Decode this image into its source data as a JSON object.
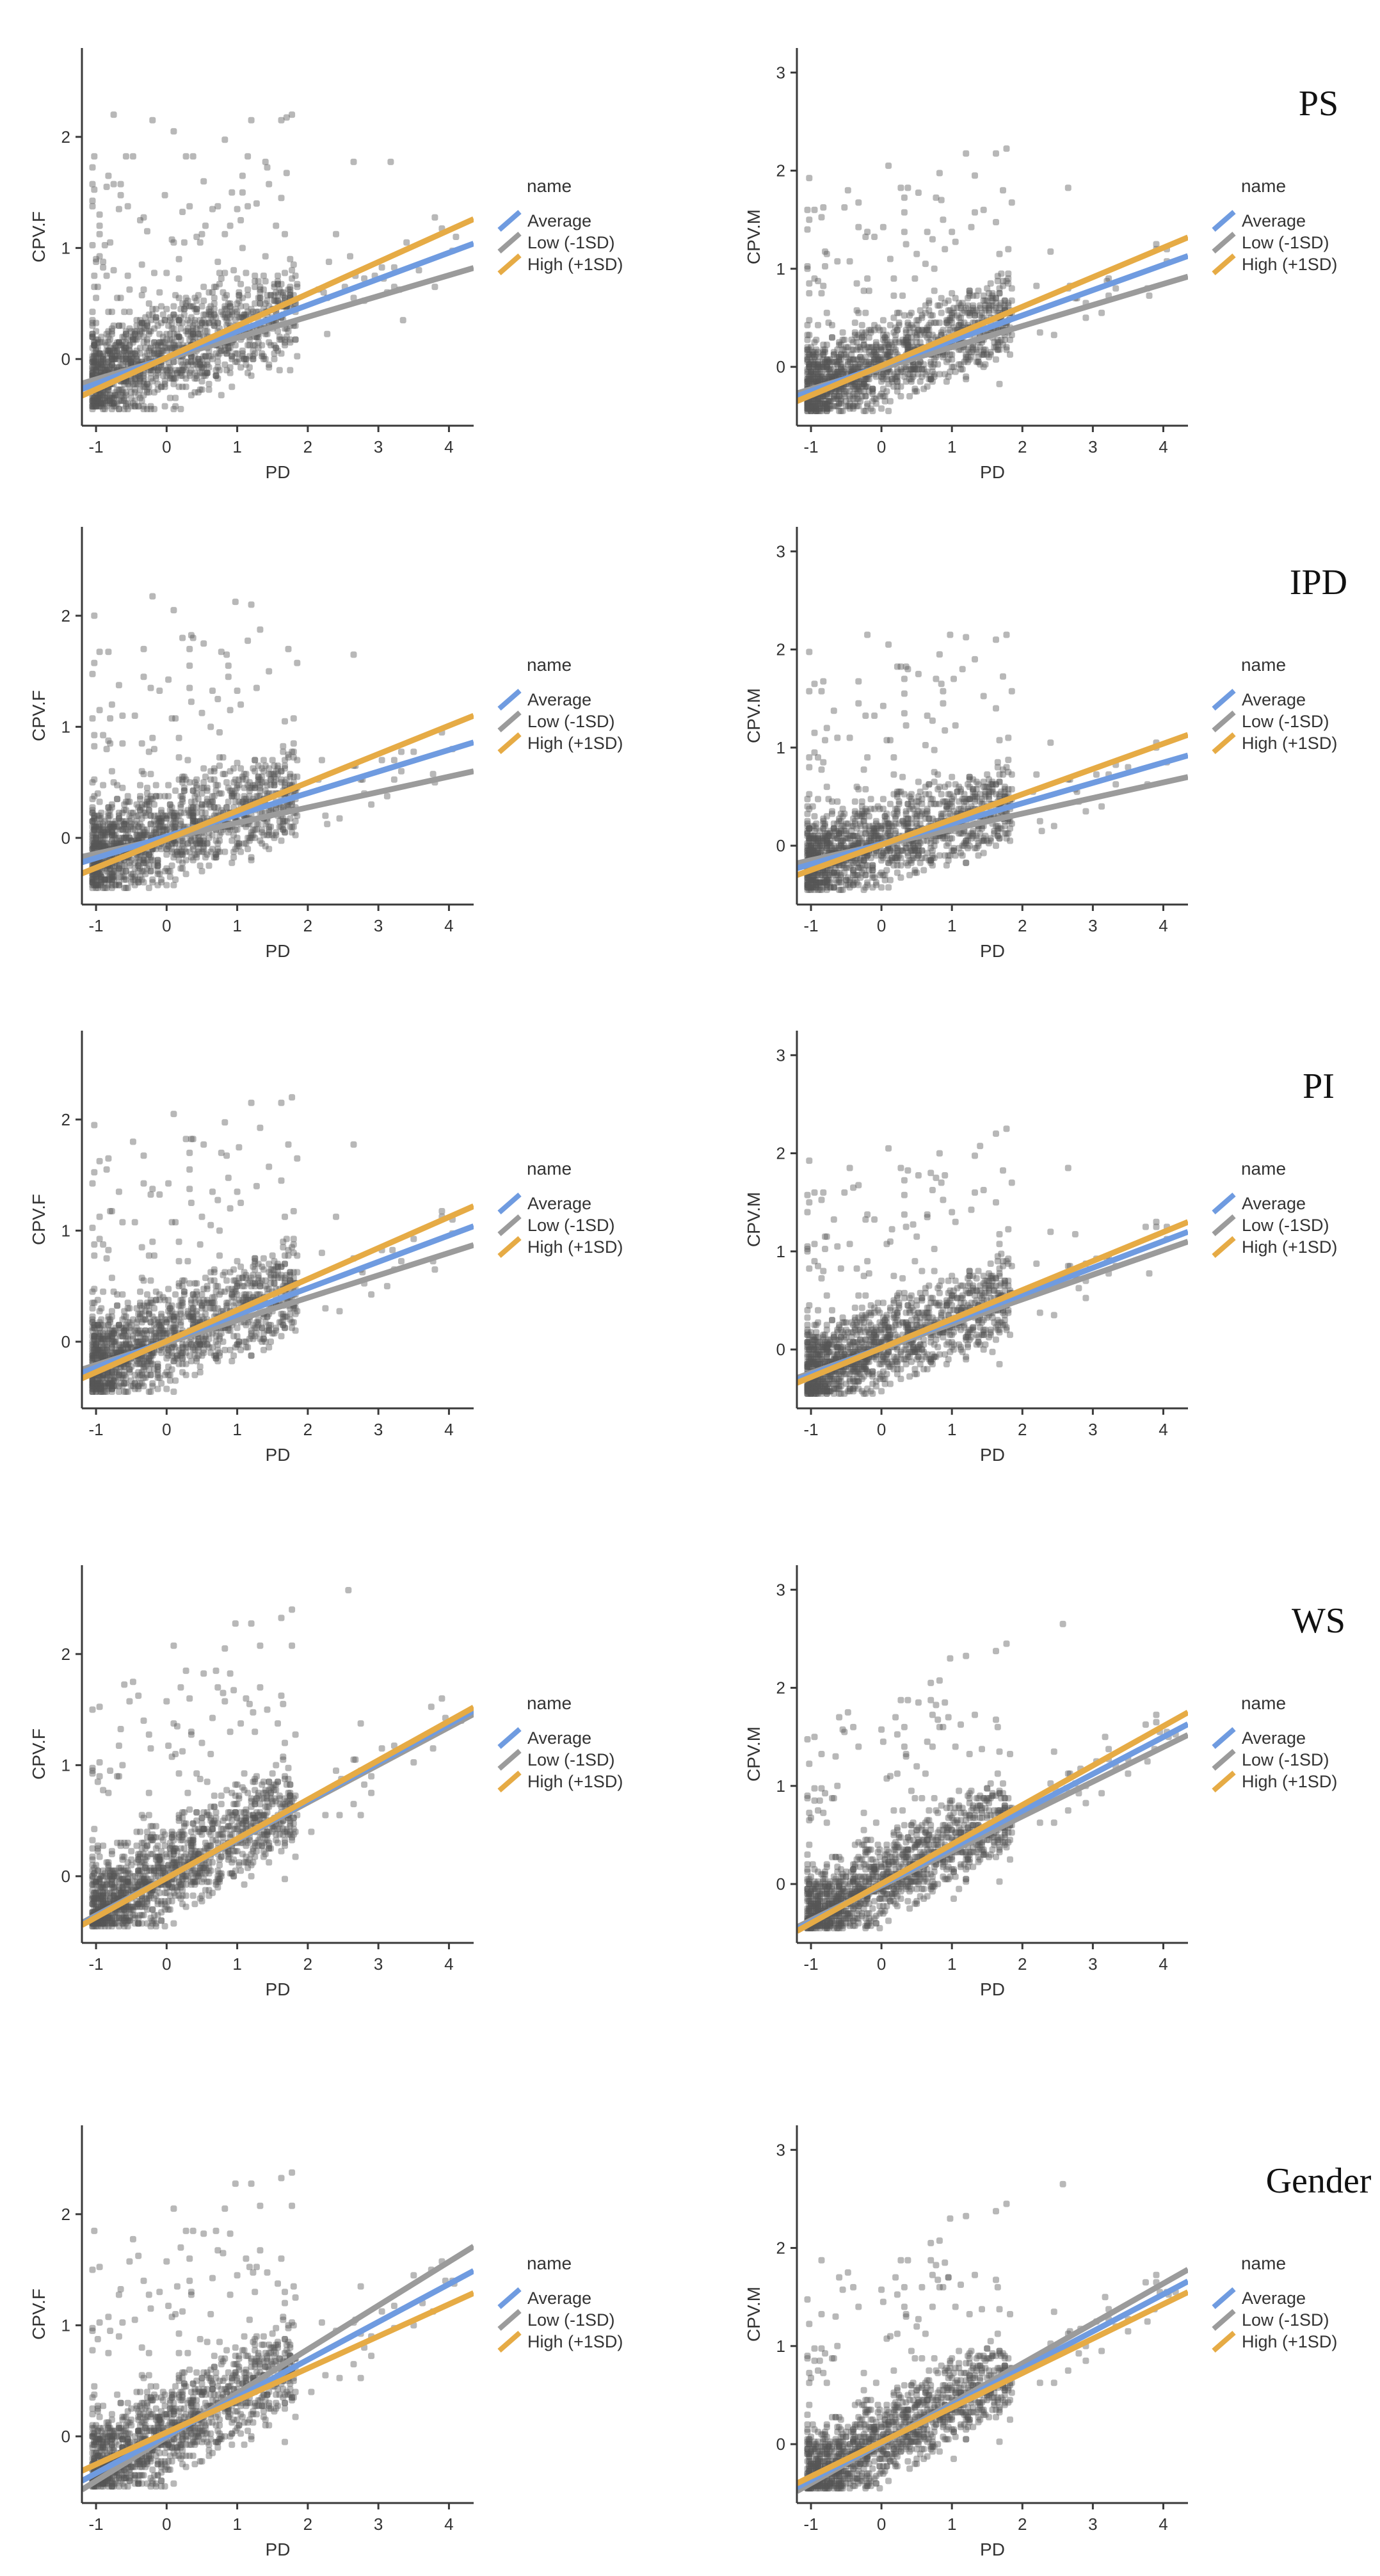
{
  "figure": {
    "description_labels": [
      "PS",
      "IPD",
      "PI",
      "WS",
      "Gender"
    ]
  },
  "legend": {
    "title": "name",
    "entries": [
      "Average",
      "Low (-1SD)",
      "High (+1SD)"
    ],
    "colors": [
      "#6f9be0",
      "#9b9b9b",
      "#e6ab45"
    ]
  },
  "colors": {
    "axis": "#3a3a3a",
    "tick_text": "#333333",
    "point": "#555555"
  },
  "chart_data": [
    {
      "type": "scatter",
      "moderator": "PS",
      "xlabel": "PD",
      "ylabel": "CPV.F",
      "xlim": [
        -1.2,
        4.35
      ],
      "ylim": [
        -0.6,
        2.8
      ],
      "xticks": [
        -1,
        0,
        1,
        2,
        3,
        4
      ],
      "yticks": [
        0,
        1,
        2
      ],
      "series": [
        {
          "name": "Average",
          "x": [
            -1.2,
            4.35
          ],
          "y": [
            -0.27,
            1.04
          ]
        },
        {
          "name": "Low (-1SD)",
          "x": [
            -1.2,
            4.35
          ],
          "y": [
            -0.22,
            0.82
          ]
        },
        {
          "name": "High (+1SD)",
          "x": [
            -1.2,
            4.35
          ],
          "y": [
            -0.33,
            1.26
          ]
        }
      ]
    },
    {
      "type": "scatter",
      "moderator": "PS",
      "xlabel": "PD",
      "ylabel": "CPV.M",
      "xlim": [
        -1.2,
        4.35
      ],
      "ylim": [
        -0.6,
        3.25
      ],
      "xticks": [
        -1,
        0,
        1,
        2,
        3,
        4
      ],
      "yticks": [
        0,
        1,
        2,
        3
      ],
      "series": [
        {
          "name": "Average",
          "x": [
            -1.2,
            4.35
          ],
          "y": [
            -0.3,
            1.13
          ]
        },
        {
          "name": "Low (-1SD)",
          "x": [
            -1.2,
            4.35
          ],
          "y": [
            -0.27,
            0.92
          ]
        },
        {
          "name": "High (+1SD)",
          "x": [
            -1.2,
            4.35
          ],
          "y": [
            -0.35,
            1.32
          ]
        }
      ]
    },
    {
      "type": "scatter",
      "moderator": "IPD",
      "xlabel": "PD",
      "ylabel": "CPV.F",
      "xlim": [
        -1.2,
        4.35
      ],
      "ylim": [
        -0.6,
        2.8
      ],
      "xticks": [
        -1,
        0,
        1,
        2,
        3,
        4
      ],
      "yticks": [
        0,
        1,
        2
      ],
      "series": [
        {
          "name": "Average",
          "x": [
            -1.2,
            4.35
          ],
          "y": [
            -0.22,
            0.86
          ]
        },
        {
          "name": "Low (-1SD)",
          "x": [
            -1.2,
            4.35
          ],
          "y": [
            -0.17,
            0.6
          ]
        },
        {
          "name": "High (+1SD)",
          "x": [
            -1.2,
            4.35
          ],
          "y": [
            -0.32,
            1.1
          ]
        }
      ]
    },
    {
      "type": "scatter",
      "moderator": "IPD",
      "xlabel": "PD",
      "ylabel": "CPV.M",
      "xlim": [
        -1.2,
        4.35
      ],
      "ylim": [
        -0.6,
        3.25
      ],
      "xticks": [
        -1,
        0,
        1,
        2,
        3,
        4
      ],
      "yticks": [
        0,
        1,
        2,
        3
      ],
      "series": [
        {
          "name": "Average",
          "x": [
            -1.2,
            4.35
          ],
          "y": [
            -0.23,
            0.92
          ]
        },
        {
          "name": "Low (-1SD)",
          "x": [
            -1.2,
            4.35
          ],
          "y": [
            -0.18,
            0.7
          ]
        },
        {
          "name": "High (+1SD)",
          "x": [
            -1.2,
            4.35
          ],
          "y": [
            -0.3,
            1.13
          ]
        }
      ]
    },
    {
      "type": "scatter",
      "moderator": "PI",
      "xlabel": "PD",
      "ylabel": "CPV.F",
      "xlim": [
        -1.2,
        4.35
      ],
      "ylim": [
        -0.6,
        2.8
      ],
      "xticks": [
        -1,
        0,
        1,
        2,
        3,
        4
      ],
      "yticks": [
        0,
        1,
        2
      ],
      "series": [
        {
          "name": "Average",
          "x": [
            -1.2,
            4.35
          ],
          "y": [
            -0.28,
            1.04
          ]
        },
        {
          "name": "Low (-1SD)",
          "x": [
            -1.2,
            4.35
          ],
          "y": [
            -0.25,
            0.87
          ]
        },
        {
          "name": "High (+1SD)",
          "x": [
            -1.2,
            4.35
          ],
          "y": [
            -0.33,
            1.22
          ]
        }
      ]
    },
    {
      "type": "scatter",
      "moderator": "PI",
      "xlabel": "PD",
      "ylabel": "CPV.M",
      "xlim": [
        -1.2,
        4.35
      ],
      "ylim": [
        -0.6,
        3.25
      ],
      "xticks": [
        -1,
        0,
        1,
        2,
        3,
        4
      ],
      "yticks": [
        0,
        1,
        2,
        3
      ],
      "series": [
        {
          "name": "Average",
          "x": [
            -1.2,
            4.35
          ],
          "y": [
            -0.31,
            1.2
          ]
        },
        {
          "name": "Low (-1SD)",
          "x": [
            -1.2,
            4.35
          ],
          "y": [
            -0.29,
            1.1
          ]
        },
        {
          "name": "High (+1SD)",
          "x": [
            -1.2,
            4.35
          ],
          "y": [
            -0.34,
            1.3
          ]
        }
      ]
    },
    {
      "type": "scatter",
      "moderator": "WS",
      "xlabel": "PD",
      "ylabel": "CPV.F",
      "xlim": [
        -1.2,
        4.35
      ],
      "ylim": [
        -0.6,
        2.8
      ],
      "xticks": [
        -1,
        0,
        1,
        2,
        3,
        4
      ],
      "yticks": [
        0,
        1,
        2
      ],
      "series": [
        {
          "name": "Average",
          "x": [
            -1.2,
            4.35
          ],
          "y": [
            -0.43,
            1.49
          ]
        },
        {
          "name": "Low (-1SD)",
          "x": [
            -1.2,
            4.35
          ],
          "y": [
            -0.42,
            1.46
          ]
        },
        {
          "name": "High (+1SD)",
          "x": [
            -1.2,
            4.35
          ],
          "y": [
            -0.44,
            1.52
          ]
        }
      ]
    },
    {
      "type": "scatter",
      "moderator": "WS",
      "xlabel": "PD",
      "ylabel": "CPV.M",
      "xlim": [
        -1.2,
        4.35
      ],
      "ylim": [
        -0.6,
        3.25
      ],
      "xticks": [
        -1,
        0,
        1,
        2,
        3,
        4
      ],
      "yticks": [
        0,
        1,
        2,
        3
      ],
      "series": [
        {
          "name": "Average",
          "x": [
            -1.2,
            4.35
          ],
          "y": [
            -0.46,
            1.63
          ]
        },
        {
          "name": "Low (-1SD)",
          "x": [
            -1.2,
            4.35
          ],
          "y": [
            -0.44,
            1.52
          ]
        },
        {
          "name": "High (+1SD)",
          "x": [
            -1.2,
            4.35
          ],
          "y": [
            -0.48,
            1.75
          ]
        }
      ]
    },
    {
      "type": "scatter",
      "moderator": "Gender",
      "xlabel": "PD",
      "ylabel": "CPV.F",
      "xlim": [
        -1.2,
        4.35
      ],
      "ylim": [
        -0.6,
        2.8
      ],
      "xticks": [
        -1,
        0,
        1,
        2,
        3,
        4
      ],
      "yticks": [
        0,
        1,
        2
      ],
      "series": [
        {
          "name": "Average",
          "x": [
            -1.2,
            4.35
          ],
          "y": [
            -0.4,
            1.49
          ]
        },
        {
          "name": "Low (-1SD)",
          "x": [
            -1.2,
            4.35
          ],
          "y": [
            -0.48,
            1.71
          ]
        },
        {
          "name": "High (+1SD)",
          "x": [
            -1.2,
            4.35
          ],
          "y": [
            -0.31,
            1.29
          ]
        }
      ]
    },
    {
      "type": "scatter",
      "moderator": "Gender",
      "xlabel": "PD",
      "ylabel": "CPV.M",
      "xlim": [
        -1.2,
        4.35
      ],
      "ylim": [
        -0.6,
        3.25
      ],
      "xticks": [
        -1,
        0,
        1,
        2,
        3,
        4
      ],
      "yticks": [
        0,
        1,
        2,
        3
      ],
      "series": [
        {
          "name": "Average",
          "x": [
            -1.2,
            4.35
          ],
          "y": [
            -0.44,
            1.66
          ]
        },
        {
          "name": "Low (-1SD)",
          "x": [
            -1.2,
            4.35
          ],
          "y": [
            -0.48,
            1.78
          ]
        },
        {
          "name": "High (+1SD)",
          "x": [
            -1.2,
            4.35
          ],
          "y": [
            -0.4,
            1.55
          ]
        }
      ]
    }
  ]
}
